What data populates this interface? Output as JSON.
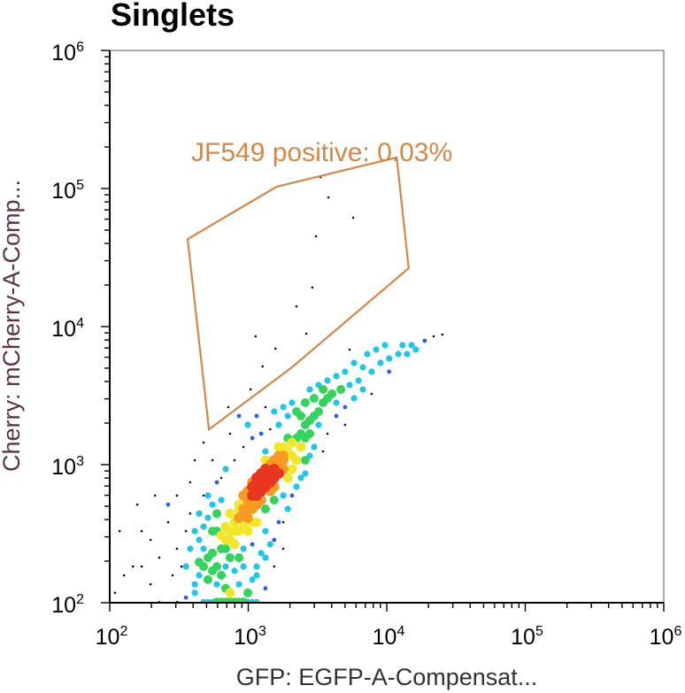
{
  "chart_data": {
    "type": "scatter",
    "title": "Singlets",
    "xlabel": "GFP: EGFP-A-Compensat...",
    "ylabel": "Cherry: mCherry-A-Comp...",
    "xscale": "log",
    "yscale": "log",
    "xlim": [
      100,
      1000000
    ],
    "ylim": [
      100,
      1000000
    ],
    "xticks": [
      {
        "value": 100,
        "base": "10",
        "exp": "2"
      },
      {
        "value": 1000,
        "base": "10",
        "exp": "3"
      },
      {
        "value": 10000,
        "base": "10",
        "exp": "4"
      },
      {
        "value": 100000,
        "base": "10",
        "exp": "5"
      },
      {
        "value": 1000000,
        "base": "10",
        "exp": "6"
      }
    ],
    "yticks": [
      {
        "value": 100,
        "base": "10",
        "exp": "2"
      },
      {
        "value": 1000,
        "base": "10",
        "exp": "3"
      },
      {
        "value": 10000,
        "base": "10",
        "exp": "4"
      },
      {
        "value": 100000,
        "base": "10",
        "exp": "5"
      },
      {
        "value": 1000000,
        "base": "10",
        "exp": "6"
      }
    ],
    "grid": false,
    "legend": "none",
    "density_colors": [
      "#111111",
      "#2f5fe6",
      "#1ec6ea",
      "#32d45c",
      "#f2e62a",
      "#f79a22",
      "#e8371e"
    ],
    "gate": {
      "label": "JF549 positive: 0.03%",
      "color": "#d4874a",
      "vertices": [
        [
          365,
          43000
        ],
        [
          1600,
          103000
        ],
        [
          11800,
          168000
        ],
        [
          14400,
          26500
        ],
        [
          2070,
          5070
        ],
        [
          520,
          1800
        ]
      ]
    },
    "points": [
      [
        1150,
        692
      ],
      [
        1240,
        745
      ],
      [
        1330,
        802
      ],
      [
        1440,
        863
      ],
      [
        1330,
        692
      ],
      [
        1150,
        802
      ],
      [
        1540,
        929
      ],
      [
        1070,
        597
      ],
      [
        1240,
        643
      ],
      [
        1440,
        745
      ],
      [
        993,
        554
      ],
      [
        1330,
        929
      ],
      [
        1540,
        802
      ],
      [
        1150,
        597
      ],
      [
        1660,
        1000
      ],
      [
        1240,
        863
      ],
      [
        1070,
        692
      ],
      [
        1440,
        643
      ],
      [
        1330,
        745
      ],
      [
        1150,
        745
      ],
      [
        1240,
        692
      ],
      [
        1440,
        802
      ],
      [
        1070,
        643
      ],
      [
        923,
        478
      ],
      [
        1070,
        478
      ],
      [
        857,
        412
      ],
      [
        1790,
        1077
      ],
      [
        1930,
        1248
      ],
      [
        1660,
        1159
      ],
      [
        993,
        643
      ],
      [
        1440,
        1000
      ],
      [
        1540,
        692
      ],
      [
        1240,
        554
      ],
      [
        1790,
        929
      ],
      [
        923,
        597
      ],
      [
        1070,
        745
      ],
      [
        1330,
        1077
      ],
      [
        796,
        383
      ],
      [
        993,
        412
      ],
      [
        993,
        478
      ],
      [
        1150,
        514
      ],
      [
        857,
        478
      ],
      [
        1660,
        863
      ],
      [
        1540,
        1077
      ],
      [
        923,
        443
      ],
      [
        739,
        330
      ],
      [
        687,
        285
      ],
      [
        857,
        330
      ],
      [
        638,
        246
      ],
      [
        796,
        265
      ],
      [
        2070,
        1446
      ],
      [
        2230,
        1557
      ],
      [
        1930,
        1557
      ],
      [
        1790,
        1344
      ],
      [
        2400,
        1676
      ],
      [
        739,
        443
      ],
      [
        593,
        330
      ],
      [
        857,
        514
      ],
      [
        1660,
        1344
      ],
      [
        2070,
        1159
      ],
      [
        1150,
        383
      ],
      [
        1330,
        478
      ],
      [
        993,
        330
      ],
      [
        687,
        356
      ],
      [
        1540,
        554
      ],
      [
        551,
        229
      ],
      [
        638,
        307
      ],
      [
        1330,
        1248
      ],
      [
        1930,
        802
      ],
      [
        796,
        330
      ],
      [
        739,
        285
      ],
      [
        923,
        356
      ],
      [
        1070,
        383
      ],
      [
        1790,
        1159
      ],
      [
        687,
        246
      ],
      [
        593,
        183
      ],
      [
        551,
        170
      ],
      [
        512,
        212
      ],
      [
        638,
        158
      ],
      [
        687,
        183
      ],
      [
        476,
        246
      ],
      [
        739,
        212
      ],
      [
        551,
        330
      ],
      [
        512,
        147
      ],
      [
        2580,
        1942
      ],
      [
        2780,
        2092
      ],
      [
        2990,
        2251
      ],
      [
        2580,
        1557
      ],
      [
        2400,
        2251
      ],
      [
        3220,
        2424
      ],
      [
        476,
        183
      ],
      [
        857,
        212
      ],
      [
        1070,
        265
      ],
      [
        1790,
        597
      ],
      [
        2070,
        929
      ],
      [
        2230,
        1077
      ],
      [
        2780,
        1676
      ],
      [
        442,
        285
      ],
      [
        442,
        158
      ],
      [
        796,
        170
      ],
      [
        923,
        183
      ],
      [
        593,
        136
      ],
      [
        687,
        127
      ],
      [
        739,
        118
      ],
      [
        857,
        136
      ],
      [
        3470,
        2810
      ],
      [
        3730,
        3025
      ],
      [
        2400,
        1344
      ],
      [
        2580,
        1077
      ],
      [
        2990,
        1344
      ],
      [
        306,
        246
      ],
      [
        355,
        330
      ],
      [
        381,
        443
      ],
      [
        330,
        183
      ],
      [
        411,
        136
      ],
      [
        284,
        158
      ],
      [
        228,
        212
      ],
      [
        197,
        285
      ],
      [
        170,
        330
      ],
      [
        264,
        383
      ],
      [
        147,
        183
      ],
      [
        127,
        158
      ],
      [
        109,
        118
      ],
      [
        118,
        330
      ],
      [
        158,
        514
      ],
      [
        212,
        597
      ],
      [
        306,
        597
      ],
      [
        381,
        745
      ],
      [
        476,
        597
      ],
      [
        411,
        1077
      ],
      [
        476,
        1446
      ],
      [
        551,
        1077
      ],
      [
        638,
        802
      ],
      [
        739,
        1676
      ],
      [
        857,
        2251
      ],
      [
        993,
        1942
      ],
      [
        1150,
        2251
      ],
      [
        1330,
        2610
      ],
      [
        1540,
        2424
      ],
      [
        1790,
        2610
      ],
      [
        2070,
        2810
      ],
      [
        2780,
        3506
      ],
      [
        3220,
        3775
      ],
      [
        3730,
        4064
      ],
      [
        4320,
        4375
      ],
      [
        5000,
        4711
      ],
      [
        5800,
        5460
      ],
      [
        6720,
        5072
      ],
      [
        4020,
        3257
      ],
      [
        4660,
        3506
      ],
      [
        5400,
        3775
      ],
      [
        6250,
        4064
      ],
      [
        4320,
        2810
      ],
      [
        5000,
        2610
      ],
      [
        5800,
        3025
      ],
      [
        3220,
        1942
      ],
      [
        3730,
        1676
      ],
      [
        4320,
        2251
      ],
      [
        5000,
        1942
      ],
      [
        2780,
        1159
      ],
      [
        3470,
        1248
      ],
      [
        2400,
        802
      ],
      [
        2070,
        597
      ],
      [
        1790,
        383
      ],
      [
        1540,
        285
      ],
      [
        1330,
        212
      ],
      [
        1150,
        158
      ],
      [
        993,
        118
      ],
      [
        923,
        246
      ],
      [
        1330,
        330
      ],
      [
        638,
        101
      ],
      [
        739,
        101
      ],
      [
        857,
        101
      ],
      [
        551,
        101
      ],
      [
        993,
        101
      ],
      [
        476,
        101
      ],
      [
        411,
        118
      ],
      [
        355,
        109
      ],
      [
        1330,
        127
      ],
      [
        1540,
        183
      ],
      [
        1790,
        246
      ],
      [
        7780,
        4711
      ],
      [
        9010,
        5460
      ],
      [
        10400,
        5879
      ],
      [
        12100,
        6328
      ],
      [
        14000,
        6328
      ],
      [
        16200,
        6813
      ],
      [
        18800,
        7895
      ],
      [
        21800,
        8500
      ],
      [
        25200,
        8750
      ],
      [
        7230,
        6328
      ],
      [
        8380,
        6813
      ],
      [
        9710,
        7334
      ],
      [
        13000,
        7334
      ],
      [
        15100,
        7334
      ],
      [
        10400,
        4711
      ],
      [
        6720,
        3506
      ],
      [
        7780,
        3257
      ],
      [
        5400,
        6813
      ],
      [
        306,
        101
      ],
      [
        228,
        101
      ],
      [
        197,
        136
      ],
      [
        170,
        183
      ],
      [
        264,
        514
      ],
      [
        512,
        101
      ],
      [
        593,
        101
      ],
      [
        687,
        101
      ],
      [
        796,
        101
      ],
      [
        923,
        101
      ],
      [
        1070,
        101
      ],
      [
        1150,
        101
      ],
      [
        442,
        443
      ],
      [
        512,
        597
      ],
      [
        593,
        745
      ],
      [
        687,
        929
      ],
      [
        796,
        1077
      ],
      [
        923,
        1344
      ],
      [
        1070,
        1557
      ],
      [
        1240,
        1676
      ],
      [
        1440,
        1804
      ],
      [
        1660,
        1942
      ],
      [
        1930,
        2251
      ],
      [
        2230,
        2424
      ],
      [
        2580,
        2810
      ],
      [
        2990,
        3025
      ],
      [
        3470,
        3506
      ],
      [
        2230,
        692
      ],
      [
        2580,
        863
      ],
      [
        1930,
        478
      ],
      [
        1660,
        383
      ],
      [
        1440,
        265
      ],
      [
        1240,
        229
      ],
      [
        1150,
        183
      ],
      [
        1070,
        147
      ],
      [
        411,
        330
      ],
      [
        381,
        246
      ],
      [
        355,
        183
      ],
      [
        442,
        197
      ],
      [
        476,
        356
      ],
      [
        512,
        412
      ],
      [
        551,
        514
      ],
      [
        593,
        443
      ],
      [
        638,
        554
      ],
      [
        3320,
        121000
      ],
      [
        3790,
        86300
      ],
      [
        3080,
        45100
      ],
      [
        5720,
        61400
      ],
      [
        2900,
        19200
      ],
      [
        2230,
        14000
      ],
      [
        1130,
        8500
      ],
      [
        2620,
        8890
      ],
      [
        1570,
        6920
      ],
      [
        1270,
        5150
      ],
      [
        1040,
        3510
      ],
      [
        718,
        2610
      ]
    ]
  }
}
